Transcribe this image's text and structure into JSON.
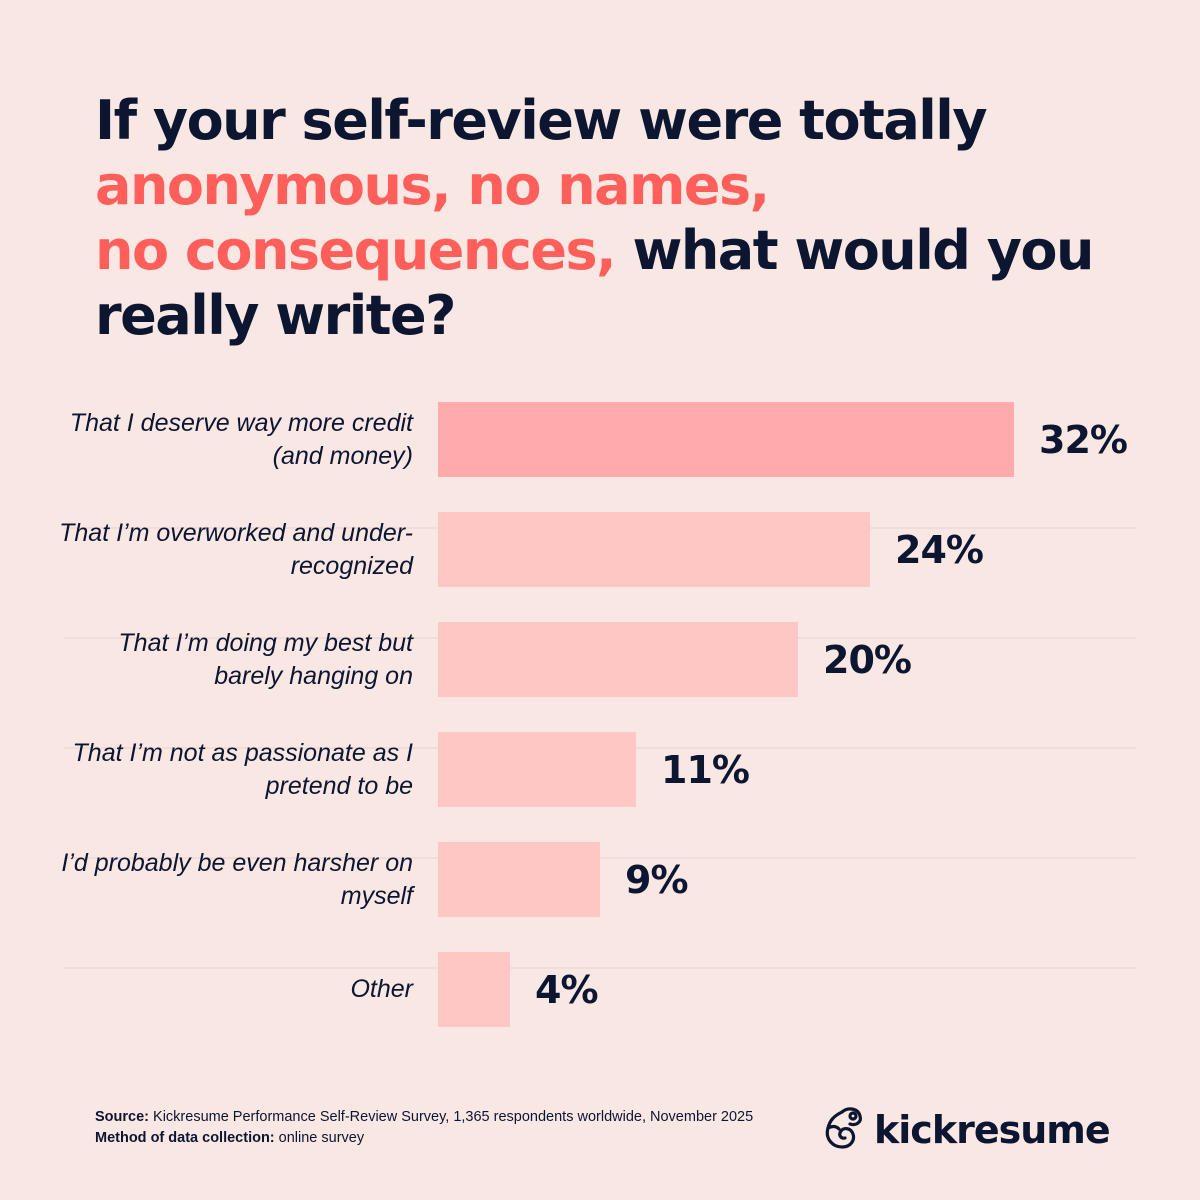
{
  "title": {
    "part1": "If your self-review were totally",
    "part2_accent": "anonymous, no names,",
    "part3_accent": "no consequences,",
    "part4": "what would you really write?"
  },
  "colors": {
    "background": "#f9e7e4",
    "text": "#0c1631",
    "accent": "#ff5f5a",
    "bar_top": "#ffabab",
    "bar": "#ffc7c4"
  },
  "chart_data": {
    "type": "bar",
    "orientation": "horizontal",
    "title": "If your self-review were totally anonymous, no names, no consequences, what would you really write?",
    "categories": [
      "That I deserve way more credit (and money)",
      "That I’m overworked and under-recognized",
      "That I’m doing my best but barely hanging on",
      "That I’m not as passionate as I pretend to be",
      "I’d probably be even harsher on myself",
      "Other"
    ],
    "values": [
      32,
      24,
      20,
      11,
      9,
      4
    ],
    "value_labels": [
      "32%",
      "24%",
      "20%",
      "11%",
      "9%",
      "4%"
    ],
    "xlabel": "",
    "ylabel": "",
    "unit": "%",
    "grid": false,
    "legend": "none"
  },
  "rows": [
    {
      "label": "That I deserve way more credit (and money)",
      "value": "32%"
    },
    {
      "label": "That I’m overworked and under-recognized",
      "value": "24%"
    },
    {
      "label": "That I’m doing my best but barely hanging on",
      "value": "20%"
    },
    {
      "label": "That I’m not as passionate as I pretend to be",
      "value": "11%"
    },
    {
      "label": "I’d probably be even harsher on myself",
      "value": "9%"
    },
    {
      "label": "Other",
      "value": "4%"
    }
  ],
  "footer": {
    "source_label": "Source:",
    "source_text": "Kickresume Performance Self-Review Survey, 1,365 respondents worldwide, November 2025",
    "method_label": "Method of data collection:",
    "method_text": "online survey"
  },
  "brand": {
    "name": "kickresume",
    "icon": "chameleon-logo-icon"
  }
}
